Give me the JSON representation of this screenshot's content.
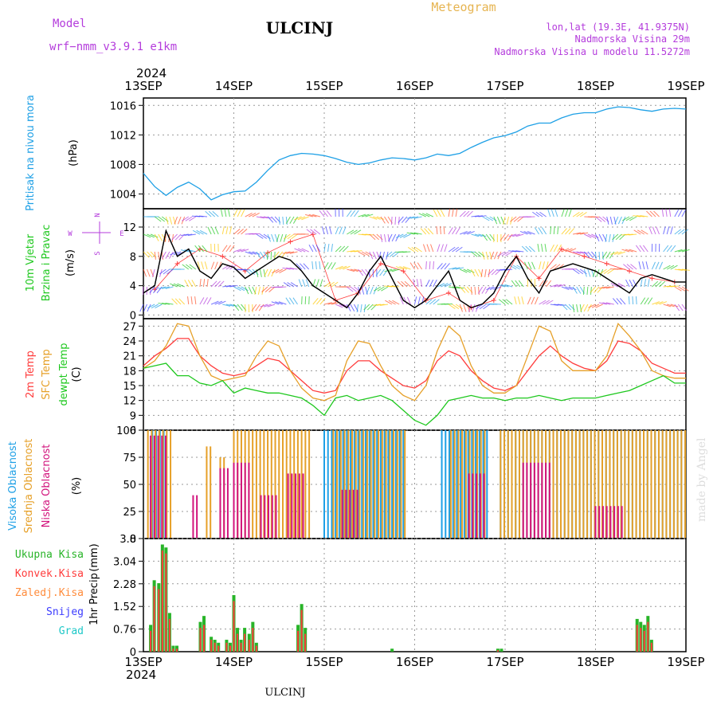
{
  "header": {
    "model_label": "Model",
    "model_name": "wrf−nmm_v3.9.1  e1km",
    "station": "ULCINJ",
    "title": "Meteogram",
    "lonlat": "lon,lat (19.3E, 41.9375N)",
    "elevation": "Nadmorska Visina 29m",
    "model_elevation": "Nadmorska Visina u modelu 11.5272m",
    "footer_station": "ULCINJ",
    "credit": "made by Angel"
  },
  "colors": {
    "pressure": "#1ea0e6",
    "wind_speed": "#000000",
    "wind_gust": "#ff3c3c",
    "temp_2m": "#ff3c3c",
    "temp_sfc": "#e6a028",
    "temp_dew": "#1ec81e",
    "cloud_high": "#1ea0e6",
    "cloud_mid": "#e6a028",
    "cloud_low": "#d2147d",
    "precip_total": "#28b428",
    "precip_conv": "#ff3c3c",
    "precip_frozen": "#ff8c3c",
    "precip_snow": "#3c3cff",
    "precip_hail": "#1ec8c8",
    "purple_text": "#b43cdc",
    "title_gold": "#e6b450"
  },
  "time_axis": {
    "year": "2024",
    "ticks": [
      "13SEP",
      "14SEP",
      "15SEP",
      "16SEP",
      "17SEP",
      "18SEP",
      "19SEP"
    ]
  },
  "chart_data": [
    {
      "type": "line",
      "ylabel_lines": [
        "Pritisak na nivou mora"
      ],
      "unit": "(hPa)",
      "ylim": [
        1002,
        1017
      ],
      "yticks": [
        "1004",
        "1008",
        "1012",
        "1016"
      ],
      "ytick_values": [
        1004,
        1008,
        1012,
        1016
      ],
      "grid": true,
      "series": [
        {
          "key": "pressure",
          "x": [
            0,
            0.125,
            0.25,
            0.375,
            0.5,
            0.625,
            0.75,
            0.875,
            1,
            1.125,
            1.25,
            1.375,
            1.5,
            1.625,
            1.75,
            1.875,
            2,
            2.125,
            2.25,
            2.375,
            2.5,
            2.625,
            2.75,
            2.875,
            3,
            3.125,
            3.25,
            3.375,
            3.5,
            3.625,
            3.75,
            3.875,
            4,
            4.125,
            4.25,
            4.375,
            4.5,
            4.625,
            4.75,
            4.875,
            5,
            5.125,
            5.25,
            5.375,
            5.5,
            5.625,
            5.75,
            5.875,
            6
          ],
          "y": [
            1006.8,
            1005.0,
            1003.8,
            1004.9,
            1005.6,
            1004.7,
            1003.2,
            1003.9,
            1004.3,
            1004.4,
            1005.6,
            1007.2,
            1008.6,
            1009.2,
            1009.5,
            1009.4,
            1009.2,
            1008.8,
            1008.3,
            1008.0,
            1008.2,
            1008.6,
            1008.9,
            1008.8,
            1008.6,
            1008.9,
            1009.4,
            1009.2,
            1009.5,
            1010.3,
            1011.0,
            1011.6,
            1011.9,
            1012.4,
            1013.2,
            1013.6,
            1013.6,
            1014.3,
            1014.8,
            1015.0,
            1015.0,
            1015.5,
            1015.8,
            1015.7,
            1015.4,
            1015.2,
            1015.5,
            1015.6,
            1015.5
          ]
        }
      ]
    },
    {
      "type": "line",
      "ylabel_lines": [
        "10m Vjetar",
        "Brzina i Pravac"
      ],
      "unit": "(m/s)",
      "compass": {
        "n": "N",
        "s": "S",
        "w": "W",
        "e": "E"
      },
      "ylim": [
        -0.5,
        14.5
      ],
      "yticks": [
        "0",
        "4",
        "8",
        "12"
      ],
      "ytick_values": [
        0,
        4,
        8,
        12
      ],
      "grid": true,
      "series": [
        {
          "key": "wind_speed",
          "x": [
            0,
            0.125,
            0.25,
            0.375,
            0.5,
            0.625,
            0.75,
            0.875,
            1,
            1.125,
            1.25,
            1.375,
            1.5,
            1.625,
            1.75,
            1.875,
            2,
            2.125,
            2.25,
            2.375,
            2.5,
            2.625,
            2.75,
            2.875,
            3,
            3.125,
            3.25,
            3.375,
            3.5,
            3.625,
            3.75,
            3.875,
            4,
            4.125,
            4.25,
            4.375,
            4.5,
            4.625,
            4.75,
            4.875,
            5,
            5.125,
            5.25,
            5.375,
            5.5,
            5.625,
            5.75,
            5.875,
            6
          ],
          "y": [
            3,
            4,
            11.5,
            8,
            9,
            6,
            5,
            7,
            6.5,
            5,
            6,
            7,
            8,
            7.5,
            6,
            4,
            3,
            2,
            1,
            3,
            6,
            8,
            5,
            2,
            1,
            2,
            4,
            6,
            2,
            1,
            1.5,
            3,
            6,
            8,
            5,
            3,
            6,
            6.5,
            7,
            6.5,
            6,
            5,
            4,
            3,
            5,
            5.5,
            5,
            4.5,
            4.5
          ]
        },
        {
          "key": "wind_gust",
          "x": [
            0.125,
            0.375,
            0.625,
            0.875,
            1.125,
            1.375,
            1.625,
            1.875,
            2.125,
            2.375,
            2.625,
            2.875,
            3.125,
            3.375,
            3.625,
            3.875,
            4.125,
            4.375,
            4.625,
            4.875,
            5.125,
            5.375,
            5.625,
            5.875
          ],
          "y": [
            3.5,
            7,
            9,
            8,
            6,
            8.5,
            10,
            11,
            2,
            3,
            7,
            6,
            2,
            3,
            1,
            2,
            8,
            5,
            9,
            8,
            7,
            6,
            5,
            4.5
          ]
        }
      ]
    },
    {
      "type": "line",
      "ylabel_lines": [
        "2m Temp",
        "SFC Temp",
        "dewpt Temp"
      ],
      "unit": "(C)",
      "ylim": [
        6,
        28.5
      ],
      "yticks": [
        "6",
        "9",
        "12",
        "15",
        "18",
        "21",
        "24",
        "27"
      ],
      "ytick_values": [
        6,
        9,
        12,
        15,
        18,
        21,
        24,
        27
      ],
      "grid": true,
      "series": [
        {
          "key": "temp_2m",
          "x": [
            0,
            0.125,
            0.25,
            0.375,
            0.5,
            0.625,
            0.75,
            0.875,
            1,
            1.125,
            1.25,
            1.375,
            1.5,
            1.625,
            1.75,
            1.875,
            2,
            2.125,
            2.25,
            2.375,
            2.5,
            2.625,
            2.75,
            2.875,
            3,
            3.125,
            3.25,
            3.375,
            3.5,
            3.625,
            3.75,
            3.875,
            4,
            4.125,
            4.25,
            4.375,
            4.5,
            4.625,
            4.75,
            4.875,
            5,
            5.125,
            5.25,
            5.375,
            5.5,
            5.625,
            5.75,
            5.875,
            6
          ],
          "y": [
            19,
            21,
            22.5,
            24.5,
            24.5,
            21,
            19,
            17.5,
            17,
            17.5,
            19,
            20.5,
            20,
            18,
            16,
            14,
            13.5,
            14,
            18,
            20,
            20,
            18,
            16.5,
            15,
            14.5,
            16,
            20,
            22,
            21,
            18,
            16,
            14.5,
            14,
            15,
            18,
            21,
            23,
            21,
            19.5,
            18.5,
            18,
            20,
            24,
            23.5,
            22,
            19.5,
            18.5,
            17.5,
            17.5
          ]
        },
        {
          "key": "temp_sfc",
          "x": [
            0,
            0.125,
            0.25,
            0.375,
            0.5,
            0.625,
            0.75,
            0.875,
            1,
            1.125,
            1.25,
            1.375,
            1.5,
            1.625,
            1.75,
            1.875,
            2,
            2.125,
            2.25,
            2.375,
            2.5,
            2.625,
            2.75,
            2.875,
            3,
            3.125,
            3.25,
            3.375,
            3.5,
            3.625,
            3.75,
            3.875,
            4,
            4.125,
            4.25,
            4.375,
            4.5,
            4.625,
            4.75,
            4.875,
            5,
            5.125,
            5.25,
            5.375,
            5.5,
            5.625,
            5.75,
            5.875,
            6
          ],
          "y": [
            18.5,
            20,
            23,
            27.5,
            27,
            21,
            17,
            16,
            16.5,
            17,
            21,
            24,
            23,
            18,
            14.5,
            12.5,
            12,
            13,
            20,
            24,
            23.5,
            19,
            15,
            13,
            12,
            15,
            22,
            27,
            25,
            19,
            15,
            13.5,
            13.5,
            15,
            21,
            27,
            26,
            20,
            18,
            18,
            18,
            21,
            27.5,
            25,
            22,
            18,
            17,
            16.5,
            16.5
          ]
        },
        {
          "key": "temp_dew",
          "x": [
            0,
            0.125,
            0.25,
            0.375,
            0.5,
            0.625,
            0.75,
            0.875,
            1,
            1.125,
            1.25,
            1.375,
            1.5,
            1.625,
            1.75,
            1.875,
            2,
            2.125,
            2.25,
            2.375,
            2.5,
            2.625,
            2.75,
            2.875,
            3,
            3.125,
            3.25,
            3.375,
            3.5,
            3.625,
            3.75,
            3.875,
            4,
            4.125,
            4.25,
            4.375,
            4.5,
            4.625,
            4.75,
            4.875,
            5,
            5.125,
            5.25,
            5.375,
            5.5,
            5.625,
            5.75,
            5.875,
            6
          ],
          "y": [
            18.5,
            19,
            19.5,
            17,
            17,
            15.5,
            15,
            16,
            13.5,
            14.5,
            14,
            13.5,
            13.5,
            13,
            12.5,
            11,
            9,
            12.5,
            13,
            12,
            12.5,
            13,
            12,
            10,
            8,
            7,
            9,
            12,
            12.5,
            13,
            12.5,
            12.5,
            12,
            12.5,
            12.5,
            13,
            12.5,
            12,
            12.5,
            12.5,
            12.5,
            13,
            13.5,
            14,
            15,
            16,
            17,
            15.5,
            15.5
          ]
        }
      ]
    },
    {
      "type": "bar",
      "ylabel_lines": [
        "Visoka Oblacnost",
        "Srednja Oblacnost",
        "Niska Oblacnost"
      ],
      "unit": "(%)",
      "ylim": [
        0,
        100
      ],
      "yticks": [
        "0",
        "25",
        "50",
        "75",
        "100"
      ],
      "ytick_values": [
        0,
        25,
        50,
        75,
        100
      ],
      "grid": true,
      "blocks": [
        {
          "key": "cloud_high",
          "from": 0.1,
          "to": 0.25,
          "value": 100
        },
        {
          "key": "cloud_mid",
          "from": 0.05,
          "to": 0.3,
          "value": 100
        },
        {
          "key": "cloud_low",
          "from": 0.08,
          "to": 0.28,
          "value": 95
        },
        {
          "key": "cloud_mid",
          "from": 0.7,
          "to": 0.75,
          "value": 85
        },
        {
          "key": "cloud_mid",
          "from": 0.85,
          "to": 0.9,
          "value": 75
        },
        {
          "key": "cloud_low",
          "from": 0.55,
          "to": 0.6,
          "value": 40
        },
        {
          "key": "cloud_low",
          "from": 0.85,
          "to": 0.95,
          "value": 65
        },
        {
          "key": "cloud_mid",
          "from": 1.0,
          "to": 1.85,
          "value": 100
        },
        {
          "key": "cloud_low",
          "from": 1.0,
          "to": 1.2,
          "value": 70
        },
        {
          "key": "cloud_low",
          "from": 1.3,
          "to": 1.5,
          "value": 40
        },
        {
          "key": "cloud_low",
          "from": 1.6,
          "to": 1.8,
          "value": 60
        },
        {
          "key": "cloud_high",
          "from": 2.0,
          "to": 2.9,
          "value": 100
        },
        {
          "key": "cloud_mid",
          "from": 2.1,
          "to": 2.9,
          "value": 100
        },
        {
          "key": "cloud_low",
          "from": 2.2,
          "to": 2.4,
          "value": 45
        },
        {
          "key": "cloud_high",
          "from": 3.3,
          "to": 3.8,
          "value": 100
        },
        {
          "key": "cloud_mid",
          "from": 3.4,
          "to": 3.8,
          "value": 100
        },
        {
          "key": "cloud_low",
          "from": 3.6,
          "to": 3.8,
          "value": 60
        },
        {
          "key": "cloud_high",
          "from": 3.95,
          "to": 6.0,
          "value": 100
        },
        {
          "key": "cloud_mid",
          "from": 3.95,
          "to": 6.0,
          "value": 100
        },
        {
          "key": "cloud_low",
          "from": 4.2,
          "to": 4.5,
          "value": 70
        },
        {
          "key": "cloud_low",
          "from": 5.0,
          "to": 5.3,
          "value": 30
        }
      ]
    },
    {
      "type": "bar",
      "ylabel_lines": [
        "1hr Precip",
        "(mm)"
      ],
      "legend": [
        "Ukupna Kisa",
        "Konvek.Kisa",
        "Zaledj.Kisa",
        "Snijeg",
        "Grad"
      ],
      "legend_keys": [
        "precip_total",
        "precip_conv",
        "precip_frozen",
        "precip_snow",
        "precip_hail"
      ],
      "ylim": [
        0,
        3.8
      ],
      "yticks": [
        "0",
        "0.76",
        "1.52",
        "2.28",
        "3.04",
        "3.8"
      ],
      "ytick_values": [
        0,
        0.76,
        1.52,
        2.28,
        3.04,
        3.8
      ],
      "grid": true,
      "series": [
        {
          "key": "precip_total",
          "x": [
            0.08,
            0.12,
            0.17,
            0.21,
            0.25,
            0.29,
            0.33,
            0.37,
            0.63,
            0.67,
            0.75,
            0.79,
            0.83,
            0.92,
            0.96,
            1.0,
            1.04,
            1.08,
            1.12,
            1.17,
            1.21,
            1.25,
            1.71,
            1.75,
            1.79,
            2.75,
            3.92,
            3.96,
            5.46,
            5.5,
            5.54,
            5.58,
            5.62
          ],
          "y": [
            0.9,
            2.4,
            2.3,
            3.6,
            3.5,
            1.3,
            0.2,
            0.2,
            1.0,
            1.2,
            0.5,
            0.4,
            0.3,
            0.4,
            0.3,
            1.9,
            0.8,
            0.4,
            0.8,
            0.6,
            1.0,
            0.3,
            0.9,
            1.6,
            0.8,
            0.1,
            0.1,
            0.1,
            1.1,
            1.0,
            0.9,
            1.2,
            0.4
          ]
        },
        {
          "key": "precip_conv",
          "x": [
            0.08,
            0.12,
            0.17,
            0.21,
            0.25,
            0.29,
            0.33,
            0.37,
            0.63,
            0.67,
            0.75,
            0.79,
            0.83,
            0.92,
            0.96,
            1.0,
            1.04,
            1.08,
            1.12,
            1.17,
            1.21,
            1.25,
            1.71,
            1.75,
            1.79,
            3.92,
            5.46,
            5.5,
            5.54,
            5.58,
            5.62
          ],
          "y": [
            0.7,
            2.2,
            2.1,
            3.4,
            3.3,
            1.1,
            0.1,
            0.1,
            0.8,
            0.9,
            0.4,
            0.3,
            0.2,
            0.3,
            0.2,
            1.7,
            0.6,
            0.3,
            0.6,
            0.4,
            0.8,
            0.2,
            0.7,
            1.4,
            0.6,
            0.05,
            0.9,
            0.8,
            0.7,
            1.0,
            0.3
          ]
        }
      ]
    }
  ]
}
